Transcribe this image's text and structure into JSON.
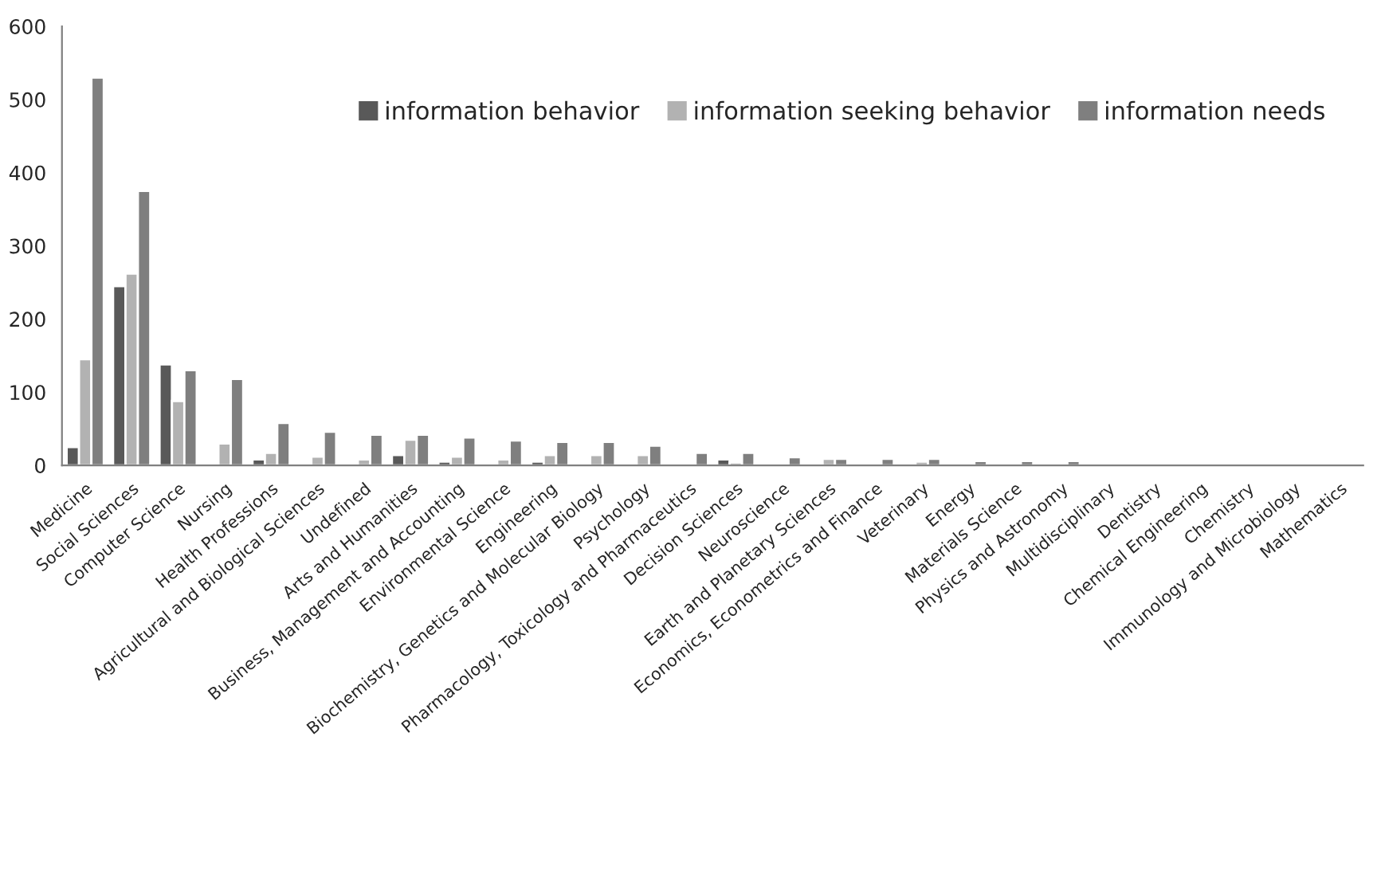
{
  "chart_data": {
    "type": "bar",
    "categories": [
      "Medicine",
      "Social Sciences",
      "Computer Science",
      "Nursing",
      "Health Professions",
      "Agricultural and Biological Sciences",
      "Undefined",
      "Arts and Humanities",
      "Business, Management and Accounting",
      "Environmental Science",
      "Engineering",
      "Biochemistry, Genetics and Molecular Biology",
      "Psychology",
      "Pharmacology, Toxicology and Pharmaceutics",
      "Decision Sciences",
      "Neuroscience",
      "Earth and Planetary Sciences",
      "Economics, Econometrics and Finance",
      "Veterinary",
      "Energy",
      "Materials Science",
      "Physics and Astronomy",
      "Multidisciplinary",
      "Dentistry",
      "Chemical Engineering",
      "Chemistry",
      "Immunology and Microbiology",
      "Mathematics"
    ],
    "series": [
      {
        "name": "information behavior",
        "color": "#595959",
        "values": [
          25,
          245,
          138,
          null,
          8,
          null,
          null,
          14,
          5,
          null,
          5,
          null,
          null,
          null,
          8,
          null,
          2,
          null,
          null,
          null,
          null,
          null,
          null,
          null,
          null,
          null,
          null,
          null
        ]
      },
      {
        "name": "information seeking behavior",
        "color": "#b2b2b2",
        "values": [
          145,
          262,
          88,
          30,
          17,
          12,
          8,
          35,
          12,
          8,
          14,
          14,
          14,
          null,
          4,
          null,
          9,
          null,
          5,
          null,
          null,
          null,
          null,
          null,
          null,
          null,
          null,
          null
        ]
      },
      {
        "name": "information needs",
        "color": "#7f7f7f",
        "values": [
          530,
          375,
          130,
          118,
          58,
          46,
          42,
          42,
          38,
          34,
          32,
          32,
          27,
          17,
          17,
          11,
          9,
          9,
          9,
          6,
          6,
          6,
          3,
          3,
          3,
          3,
          3,
          3
        ]
      }
    ],
    "ylim": [
      0,
      600
    ],
    "yticks": [
      0,
      100,
      200,
      300,
      400,
      500,
      600
    ],
    "grid": false,
    "legend": "top"
  }
}
